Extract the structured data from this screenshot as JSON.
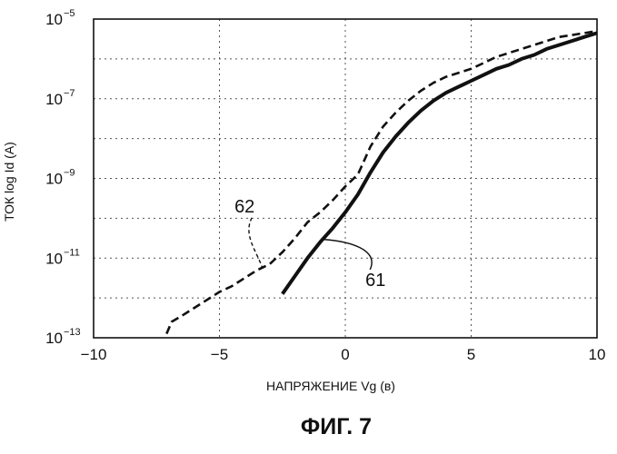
{
  "chart_data": {
    "type": "line",
    "title": "",
    "caption": "ФИГ. 7",
    "xlabel": "НАПРЯЖЕНИЕ  Vg (в)",
    "ylabel": "ТОК  log Id (A)",
    "xlim": [
      -10,
      10
    ],
    "ylim_exponent": [
      -13,
      -5
    ],
    "y_scale": "log",
    "grid": true,
    "x_ticks": [
      "−10",
      "−5",
      "0",
      "5",
      "10"
    ],
    "x_tick_values": [
      -10,
      -5,
      0,
      5,
      10
    ],
    "y_ticks": [
      {
        "base": "10",
        "exp": "−13",
        "value": -13
      },
      {
        "base": "10",
        "exp": "−11",
        "value": -11
      },
      {
        "base": "10",
        "exp": "−9",
        "value": -9
      },
      {
        "base": "10",
        "exp": "−7",
        "value": -7
      },
      {
        "base": "10",
        "exp": "−5",
        "value": -5
      }
    ],
    "series": [
      {
        "name": "61",
        "style": "solid",
        "color": "#111111",
        "x": [
          -2.5,
          -2.0,
          -1.5,
          -1.0,
          -0.5,
          0.0,
          0.5,
          1.0,
          1.5,
          2.0,
          2.5,
          3.0,
          3.5,
          4.0,
          4.5,
          5.0,
          5.5,
          6.0,
          6.5,
          7.0,
          7.5,
          8.0,
          8.5,
          9.0,
          9.5,
          10.0
        ],
        "y": [
          -11.9,
          -11.45,
          -11.0,
          -10.6,
          -10.25,
          -9.85,
          -9.4,
          -8.85,
          -8.35,
          -7.95,
          -7.6,
          -7.3,
          -7.05,
          -6.85,
          -6.7,
          -6.55,
          -6.4,
          -6.25,
          -6.15,
          -6.0,
          -5.9,
          -5.75,
          -5.65,
          -5.55,
          -5.45,
          -5.35
        ]
      },
      {
        "name": "62",
        "style": "dashed",
        "color": "#111111",
        "x": [
          -7.1,
          -6.9,
          -6.5,
          -6.0,
          -5.5,
          -5.0,
          -4.5,
          -4.0,
          -3.5,
          -3.0,
          -2.5,
          -2.0,
          -1.5,
          -1.0,
          -0.5,
          0.0,
          0.5,
          1.0,
          1.5,
          2.0,
          2.5,
          3.0,
          3.5,
          4.0,
          4.5,
          5.0,
          5.5,
          6.0,
          6.5,
          7.0,
          7.5,
          8.0,
          8.5,
          9.0,
          9.5,
          10.0
        ],
        "y": [
          -12.9,
          -12.6,
          -12.45,
          -12.25,
          -12.05,
          -11.85,
          -11.7,
          -11.5,
          -11.3,
          -11.15,
          -10.85,
          -10.5,
          -10.1,
          -9.85,
          -9.55,
          -9.2,
          -8.9,
          -8.2,
          -7.7,
          -7.35,
          -7.05,
          -6.8,
          -6.6,
          -6.45,
          -6.35,
          -6.25,
          -6.1,
          -5.95,
          -5.85,
          -5.75,
          -5.65,
          -5.55,
          -5.45,
          -5.4,
          -5.35,
          -5.3
        ]
      }
    ],
    "annotations": [
      {
        "text": "62",
        "series": "62"
      },
      {
        "text": "61",
        "series": "61"
      }
    ]
  }
}
